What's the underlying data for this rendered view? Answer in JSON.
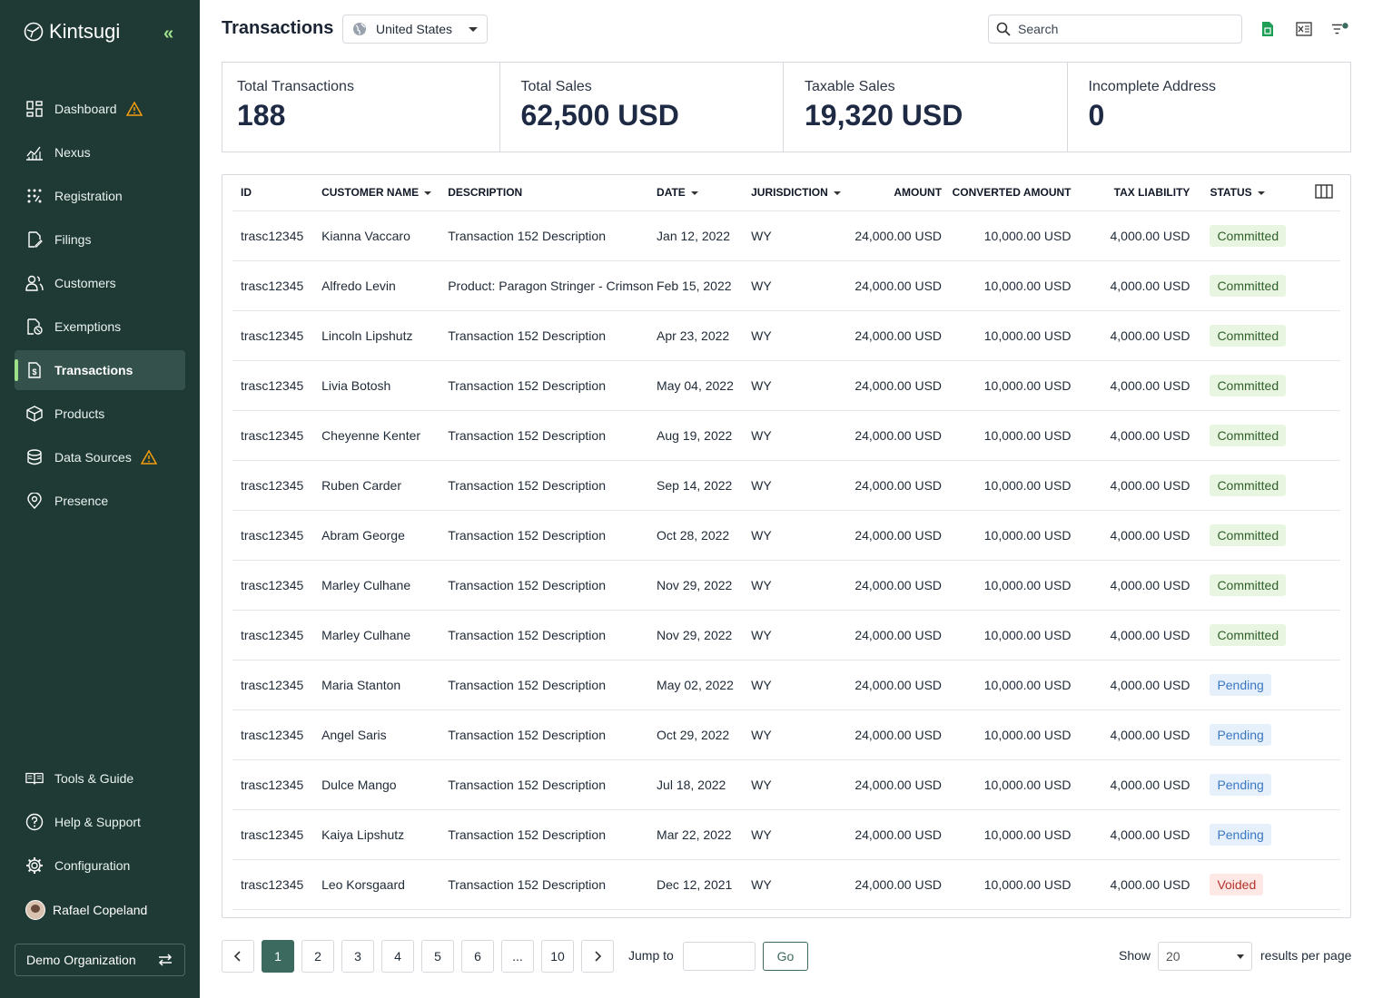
{
  "brand": {
    "name": "Kintsugi"
  },
  "sidebar": {
    "items": [
      {
        "label": "Dashboard",
        "icon": "dashboard-icon",
        "warning": true
      },
      {
        "label": "Nexus",
        "icon": "chart-icon",
        "warning": false
      },
      {
        "label": "Registration",
        "icon": "registration-icon",
        "warning": false
      },
      {
        "label": "Filings",
        "icon": "filings-icon",
        "warning": false
      },
      {
        "label": "Customers",
        "icon": "customers-icon",
        "warning": false
      },
      {
        "label": "Exemptions",
        "icon": "exemptions-icon",
        "warning": false
      },
      {
        "label": "Transactions",
        "icon": "transactions-icon",
        "warning": false,
        "active": true
      },
      {
        "label": "Products",
        "icon": "products-icon",
        "warning": false
      },
      {
        "label": "Data Sources",
        "icon": "database-icon",
        "warning": true
      },
      {
        "label": "Presence",
        "icon": "location-pin-icon",
        "warning": false
      }
    ],
    "bottom_items": [
      {
        "label": "Tools & Guide",
        "icon": "book-icon"
      },
      {
        "label": "Help & Support",
        "icon": "help-icon"
      },
      {
        "label": "Configuration",
        "icon": "gear-icon"
      }
    ],
    "user": "Rafael Copeland",
    "organization": "Demo Organization"
  },
  "header": {
    "title": "Transactions",
    "country": "United States",
    "search_placeholder": "Search"
  },
  "stats": [
    {
      "label": "Total Transactions",
      "value": "188"
    },
    {
      "label": "Total Sales",
      "value": "62,500 USD"
    },
    {
      "label": "Taxable Sales",
      "value": "19,320 USD"
    },
    {
      "label": "Incomplete Address",
      "value": "0"
    }
  ],
  "table": {
    "columns": {
      "id": "ID",
      "customer": "CUSTOMER NAME",
      "description": "DESCRIPTION",
      "date": "DATE",
      "jurisdiction": "JURISDICTION",
      "amount": "AMOUNT",
      "converted": "CONVERTED AMOUNT",
      "tax": "TAX LIABILITY",
      "status": "STATUS"
    },
    "rows": [
      {
        "id": "trasc12345",
        "customer": "Kianna Vaccaro",
        "description": "Transaction 152 Description",
        "date": "Jan 12, 2022",
        "jurisdiction": "WY",
        "amount": "24,000.00 USD",
        "converted": "10,000.00 USD",
        "tax": "4,000.00 USD",
        "status": "Committed"
      },
      {
        "id": "trasc12345",
        "customer": "Alfredo Levin",
        "description": "Product: Paragon Stringer - Crimson",
        "date": "Feb 15, 2022",
        "jurisdiction": "WY",
        "amount": "24,000.00 USD",
        "converted": "10,000.00 USD",
        "tax": "4,000.00 USD",
        "status": "Committed"
      },
      {
        "id": "trasc12345",
        "customer": "Lincoln Lipshutz",
        "description": "Transaction 152 Description",
        "date": "Apr 23, 2022",
        "jurisdiction": "WY",
        "amount": "24,000.00 USD",
        "converted": "10,000.00 USD",
        "tax": "4,000.00 USD",
        "status": "Committed"
      },
      {
        "id": "trasc12345",
        "customer": "Livia Botosh",
        "description": "Transaction 152 Description",
        "date": "May 04, 2022",
        "jurisdiction": "WY",
        "amount": "24,000.00 USD",
        "converted": "10,000.00 USD",
        "tax": "4,000.00 USD",
        "status": "Committed"
      },
      {
        "id": "trasc12345",
        "customer": "Cheyenne Kenter",
        "description": "Transaction 152 Description",
        "date": "Aug 19, 2022",
        "jurisdiction": "WY",
        "amount": "24,000.00 USD",
        "converted": "10,000.00 USD",
        "tax": "4,000.00 USD",
        "status": "Committed"
      },
      {
        "id": "trasc12345",
        "customer": "Ruben Carder",
        "description": "Transaction 152 Description",
        "date": "Sep 14, 2022",
        "jurisdiction": "WY",
        "amount": "24,000.00 USD",
        "converted": "10,000.00 USD",
        "tax": "4,000.00 USD",
        "status": "Committed"
      },
      {
        "id": "trasc12345",
        "customer": "Abram George",
        "description": "Transaction 152 Description",
        "date": "Oct 28, 2022",
        "jurisdiction": "WY",
        "amount": "24,000.00 USD",
        "converted": "10,000.00 USD",
        "tax": "4,000.00 USD",
        "status": "Committed"
      },
      {
        "id": "trasc12345",
        "customer": "Marley Culhane",
        "description": "Transaction 152 Description",
        "date": "Nov 29, 2022",
        "jurisdiction": "WY",
        "amount": "24,000.00 USD",
        "converted": "10,000.00 USD",
        "tax": "4,000.00 USD",
        "status": "Committed"
      },
      {
        "id": "trasc12345",
        "customer": "Marley Culhane",
        "description": "Transaction 152 Description",
        "date": "Nov 29, 2022",
        "jurisdiction": "WY",
        "amount": "24,000.00 USD",
        "converted": "10,000.00 USD",
        "tax": "4,000.00 USD",
        "status": "Committed"
      },
      {
        "id": "trasc12345",
        "customer": "Maria Stanton",
        "description": "Transaction 152 Description",
        "date": "May 02, 2022",
        "jurisdiction": "WY",
        "amount": "24,000.00 USD",
        "converted": "10,000.00 USD",
        "tax": "4,000.00 USD",
        "status": "Pending"
      },
      {
        "id": "trasc12345",
        "customer": "Angel Saris",
        "description": "Transaction 152 Description",
        "date": "Oct 29, 2022",
        "jurisdiction": "WY",
        "amount": "24,000.00 USD",
        "converted": "10,000.00 USD",
        "tax": "4,000.00 USD",
        "status": "Pending"
      },
      {
        "id": "trasc12345",
        "customer": "Dulce Mango",
        "description": "Transaction 152 Description",
        "date": "Jul 18, 2022",
        "jurisdiction": "WY",
        "amount": "24,000.00 USD",
        "converted": "10,000.00 USD",
        "tax": "4,000.00 USD",
        "status": "Pending"
      },
      {
        "id": "trasc12345",
        "customer": "Kaiya Lipshutz",
        "description": "Transaction 152 Description",
        "date": "Mar 22, 2022",
        "jurisdiction": "WY",
        "amount": "24,000.00 USD",
        "converted": "10,000.00 USD",
        "tax": "4,000.00 USD",
        "status": "Pending"
      },
      {
        "id": "trasc12345",
        "customer": "Leo Korsgaard",
        "description": "Transaction 152 Description",
        "date": "Dec 12, 2021",
        "jurisdiction": "WY",
        "amount": "24,000.00 USD",
        "converted": "10,000.00 USD",
        "tax": "4,000.00 USD",
        "status": "Voided"
      }
    ]
  },
  "pagination": {
    "pages": [
      "1",
      "2",
      "3",
      "4",
      "5",
      "6",
      "...",
      "10"
    ],
    "current": "1",
    "jump_label": "Jump to",
    "go_label": "Go",
    "show_label": "Show",
    "per_page": "20",
    "results_label": "results per page"
  },
  "colors": {
    "sidebar_bg": "#1f3a34",
    "accent": "#9ee08a",
    "primary": "#3c6a5f",
    "warning": "#f59e0b",
    "committed": "#2f5f2a",
    "pending": "#3a78c2",
    "voided": "#b4332a"
  }
}
